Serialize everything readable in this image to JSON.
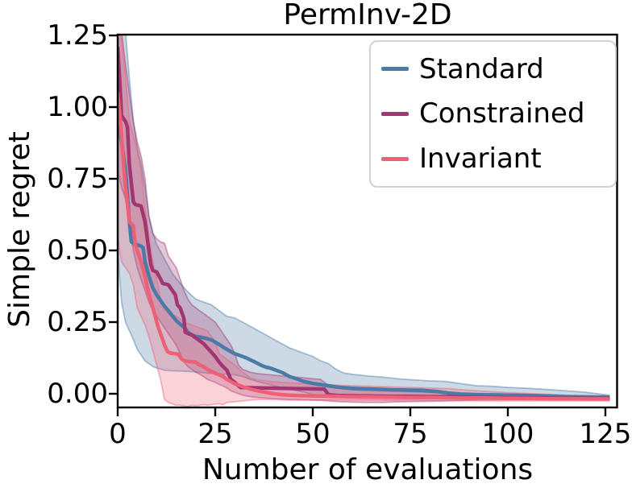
{
  "chart_data": {
    "type": "line",
    "title": "PermInv-2D",
    "xlabel": "Number of evaluations",
    "ylabel": "Simple regret",
    "xlim": [
      0,
      128
    ],
    "ylim": [
      -0.048,
      1.253
    ],
    "grid": false,
    "legend_position": "upper right",
    "axis_color": "#000000",
    "xticks": {
      "values": [
        0,
        25,
        50,
        75,
        100,
        125
      ],
      "labels": [
        "0",
        "25",
        "50",
        "75",
        "100",
        "125"
      ]
    },
    "yticks": {
      "values": [
        0.0,
        0.25,
        0.5,
        0.75,
        1.0,
        1.25
      ],
      "labels": [
        "0.00",
        "0.25",
        "0.50",
        "0.75",
        "1.00",
        "1.25"
      ]
    },
    "series": [
      {
        "name": "Standard",
        "color": "#4a7ba7",
        "x": [
          0,
          0.5,
          1,
          2,
          3,
          3.5,
          4,
          5,
          6,
          6.5,
          7,
          8,
          9,
          10,
          11,
          12,
          13,
          14,
          15,
          16,
          17,
          18,
          19,
          20,
          21,
          23,
          24,
          25,
          26,
          27,
          28,
          29,
          30,
          31,
          32,
          33,
          34,
          35,
          36,
          37,
          38,
          39,
          40,
          41,
          42,
          43,
          44,
          45,
          46,
          47,
          48,
          49,
          50,
          52,
          54,
          56,
          58,
          60,
          63,
          66,
          70,
          74,
          78,
          82,
          85,
          88,
          92,
          96,
          100,
          105,
          110,
          115,
          120,
          126
        ],
        "y": [
          0.94,
          0.91,
          0.88,
          0.78,
          0.6,
          0.53,
          0.525,
          0.52,
          0.515,
          0.51,
          0.46,
          0.41,
          0.37,
          0.345,
          0.325,
          0.305,
          0.29,
          0.272,
          0.255,
          0.243,
          0.232,
          0.215,
          0.205,
          0.2,
          0.198,
          0.192,
          0.188,
          0.18,
          0.172,
          0.163,
          0.155,
          0.147,
          0.14,
          0.135,
          0.13,
          0.125,
          0.118,
          0.112,
          0.105,
          0.098,
          0.093,
          0.09,
          0.085,
          0.08,
          0.075,
          0.068,
          0.06,
          0.056,
          0.052,
          0.046,
          0.042,
          0.039,
          0.036,
          0.032,
          0.028,
          0.024,
          0.021,
          0.019,
          0.017,
          0.016,
          0.014,
          0.013,
          0.012,
          0.008,
          0.002,
          -0.001,
          -0.003,
          -0.004,
          -0.005,
          -0.006,
          -0.008,
          -0.01,
          -0.011,
          -0.012
        ],
        "band_x": [
          0,
          1,
          2,
          3,
          4,
          5,
          6,
          7,
          8,
          9,
          10,
          12,
          14,
          16,
          18,
          20,
          22,
          24,
          26,
          28,
          30,
          32,
          34,
          36,
          38,
          40,
          42,
          44,
          46,
          48,
          50,
          52,
          54,
          56,
          58,
          60,
          64,
          68,
          72,
          76,
          80,
          84,
          88,
          92,
          96,
          100,
          105,
          110,
          115,
          120,
          126
        ],
        "band_upper": [
          1.26,
          1.26,
          1.26,
          1.1,
          0.95,
          0.86,
          0.8,
          0.72,
          0.62,
          0.56,
          0.52,
          0.47,
          0.42,
          0.385,
          0.355,
          0.33,
          0.32,
          0.31,
          0.29,
          0.27,
          0.264,
          0.25,
          0.235,
          0.22,
          0.205,
          0.19,
          0.175,
          0.16,
          0.15,
          0.14,
          0.13,
          0.115,
          0.105,
          0.085,
          0.072,
          0.068,
          0.062,
          0.058,
          0.052,
          0.048,
          0.045,
          0.043,
          0.035,
          0.028,
          0.026,
          0.022,
          0.019,
          0.015,
          0.01,
          0.005,
          -0.005
        ],
        "band_lower": [
          0.5,
          0.32,
          0.25,
          0.22,
          0.19,
          0.155,
          0.135,
          0.115,
          0.105,
          0.095,
          0.09,
          0.082,
          0.08,
          0.079,
          0.078,
          0.076,
          0.073,
          0.071,
          0.069,
          0.068,
          0.066,
          0.06,
          0.05,
          0.042,
          0.035,
          0.028,
          0.022,
          0.017,
          0.01,
          0.005,
          -0.003,
          -0.006,
          -0.009,
          -0.011,
          -0.013,
          -0.014,
          -0.015,
          -0.016,
          -0.016,
          -0.017,
          -0.017,
          -0.017,
          -0.018,
          -0.018,
          -0.018,
          -0.019,
          -0.019,
          -0.019,
          -0.02,
          -0.02,
          -0.02
        ]
      },
      {
        "name": "Constrained",
        "color": "#a13671",
        "x": [
          0,
          0.5,
          1,
          2,
          2.5,
          3,
          4,
          4.5,
          6,
          7,
          7.5,
          8,
          8.5,
          9,
          10,
          11,
          11.5,
          13,
          14,
          14.8,
          15.3,
          16,
          16.8,
          17,
          17.3,
          18,
          19,
          20,
          21,
          22,
          23,
          24,
          25,
          26,
          27,
          28,
          29,
          30,
          31,
          31.5,
          34,
          38,
          42,
          46,
          50,
          53,
          54,
          56,
          60,
          65,
          70,
          75,
          80,
          85,
          87,
          90,
          95,
          100,
          110,
          120,
          126
        ],
        "y": [
          1.21,
          1.1,
          0.97,
          0.95,
          0.93,
          0.8,
          0.67,
          0.66,
          0.655,
          0.6,
          0.55,
          0.5,
          0.45,
          0.43,
          0.425,
          0.4,
          0.385,
          0.38,
          0.36,
          0.345,
          0.31,
          0.3,
          0.27,
          0.26,
          0.215,
          0.21,
          0.205,
          0.195,
          0.185,
          0.175,
          0.16,
          0.145,
          0.13,
          0.11,
          0.095,
          0.082,
          0.05,
          0.04,
          0.027,
          0.022,
          0.021,
          0.02,
          0.019,
          0.018,
          0.017,
          0.016,
          -0.003,
          -0.006,
          -0.007,
          -0.008,
          -0.009,
          -0.009,
          -0.01,
          -0.01,
          -0.011,
          -0.013,
          -0.013,
          -0.014,
          -0.015,
          -0.016,
          -0.016
        ],
        "band_x": [
          0,
          1,
          2,
          3,
          4,
          5,
          6,
          7,
          8,
          9,
          10,
          11,
          12,
          13,
          14,
          15,
          16,
          17,
          18,
          19,
          20,
          21,
          22,
          23,
          24,
          25,
          26,
          27,
          28,
          29,
          30,
          31,
          32,
          34,
          36,
          40,
          44,
          48,
          52,
          54,
          56,
          60,
          64,
          68,
          72,
          76,
          80,
          84,
          88,
          92,
          96,
          100,
          110,
          120,
          126
        ],
        "band_upper": [
          1.26,
          1.26,
          1.15,
          1.05,
          0.95,
          0.88,
          0.83,
          0.75,
          0.62,
          0.56,
          0.54,
          0.53,
          0.525,
          0.48,
          0.46,
          0.44,
          0.4,
          0.36,
          0.33,
          0.31,
          0.3,
          0.29,
          0.28,
          0.27,
          0.26,
          0.25,
          0.23,
          0.21,
          0.19,
          0.17,
          0.14,
          0.1,
          0.085,
          0.075,
          0.07,
          0.065,
          0.06,
          0.055,
          0.05,
          0.03,
          0.02,
          0.014,
          0.012,
          0.01,
          0.009,
          0.007,
          0.005,
          0.003,
          0.0,
          -0.004,
          -0.006,
          -0.007,
          -0.008,
          -0.009,
          -0.01
        ],
        "band_lower": [
          0.78,
          0.72,
          0.68,
          0.6,
          0.5,
          0.44,
          0.4,
          0.36,
          0.32,
          0.29,
          0.27,
          0.25,
          0.23,
          0.21,
          0.19,
          0.17,
          0.14,
          0.11,
          0.095,
          0.085,
          0.075,
          0.068,
          0.06,
          0.05,
          0.045,
          0.04,
          0.033,
          0.027,
          0.02,
          0.01,
          0.005,
          0.0,
          -0.005,
          -0.01,
          -0.013,
          -0.017,
          -0.02,
          -0.021,
          -0.023,
          -0.025,
          -0.027,
          -0.029,
          -0.03,
          -0.03,
          -0.028,
          -0.027,
          -0.026,
          -0.025,
          -0.024,
          -0.022,
          -0.021,
          -0.02,
          -0.019,
          -0.018,
          -0.018
        ]
      },
      {
        "name": "Invariant",
        "color": "#ee6075",
        "x": [
          0,
          0.5,
          1,
          1.5,
          2,
          2.5,
          3,
          4,
          4.5,
          5,
          5.5,
          6,
          6.6,
          7.3,
          7.9,
          8.7,
          9.3,
          10,
          10.7,
          11.4,
          12.1,
          12.8,
          13.5,
          14.5,
          15.5,
          16.2,
          16.9,
          18,
          19,
          20,
          21,
          21.7,
          23,
          24,
          25,
          26,
          27,
          28,
          30,
          32,
          34,
          36,
          38,
          40,
          42,
          44,
          48,
          52,
          56,
          60,
          65,
          70,
          75,
          80,
          85,
          90,
          95,
          100,
          105,
          110,
          115,
          120,
          126
        ],
        "y": [
          1.05,
          0.98,
          0.9,
          0.8,
          0.72,
          0.66,
          0.6,
          0.585,
          0.52,
          0.5,
          0.48,
          0.46,
          0.43,
          0.39,
          0.354,
          0.315,
          0.287,
          0.25,
          0.22,
          0.194,
          0.166,
          0.147,
          0.142,
          0.14,
          0.138,
          0.124,
          0.116,
          0.113,
          0.112,
          0.11,
          0.1,
          0.097,
          0.085,
          0.078,
          0.072,
          0.066,
          0.06,
          0.05,
          0.035,
          0.025,
          0.016,
          0.01,
          0.005,
          0.0,
          -0.003,
          -0.005,
          -0.007,
          -0.008,
          -0.009,
          -0.01,
          -0.011,
          -0.012,
          -0.013,
          -0.013,
          -0.014,
          -0.015,
          -0.015,
          -0.016,
          -0.016,
          -0.017,
          -0.017,
          -0.018,
          -0.018
        ],
        "band_x": [
          0,
          0.5,
          1,
          2,
          3,
          4,
          5,
          6,
          7,
          8,
          9,
          10,
          11,
          12,
          13,
          14,
          15,
          16,
          17,
          18,
          19,
          20,
          21,
          22,
          23,
          24,
          25,
          26,
          27,
          28,
          30,
          32,
          34,
          36,
          38,
          40,
          44,
          48,
          52,
          56,
          60,
          65,
          70,
          75,
          80,
          85,
          90,
          95,
          100,
          105,
          110,
          115,
          120,
          126
        ],
        "band_upper": [
          1.26,
          1.26,
          1.26,
          1.1,
          0.95,
          0.9,
          0.85,
          0.78,
          0.65,
          0.55,
          0.46,
          0.4,
          0.33,
          0.29,
          0.28,
          0.275,
          0.27,
          0.26,
          0.25,
          0.245,
          0.24,
          0.235,
          0.23,
          0.225,
          0.22,
          0.2,
          0.18,
          0.14,
          0.13,
          0.12,
          0.1,
          0.075,
          0.055,
          0.048,
          0.045,
          0.042,
          0.038,
          0.035,
          0.032,
          0.03,
          0.028,
          0.026,
          0.024,
          0.022,
          0.02,
          0.018,
          0.012,
          0.008,
          0.004,
          0.001,
          -0.002,
          -0.005,
          -0.008,
          -0.01
        ],
        "band_lower": [
          0.55,
          0.5,
          0.46,
          0.44,
          0.42,
          0.38,
          0.3,
          0.27,
          0.24,
          0.2,
          0.15,
          0.1,
          0.05,
          -0.02,
          -0.03,
          -0.035,
          -0.04,
          -0.04,
          -0.042,
          -0.045,
          -0.04,
          -0.042,
          -0.04,
          -0.038,
          -0.04,
          -0.038,
          -0.036,
          -0.035,
          -0.038,
          -0.03,
          -0.028,
          -0.025,
          -0.022,
          -0.02,
          -0.02,
          -0.02,
          -0.022,
          -0.022,
          -0.022,
          -0.022,
          -0.022,
          -0.022,
          -0.023,
          -0.023,
          -0.024,
          -0.024,
          -0.024,
          -0.025,
          -0.025,
          -0.025,
          -0.025,
          -0.025,
          -0.025,
          -0.025
        ]
      }
    ]
  }
}
